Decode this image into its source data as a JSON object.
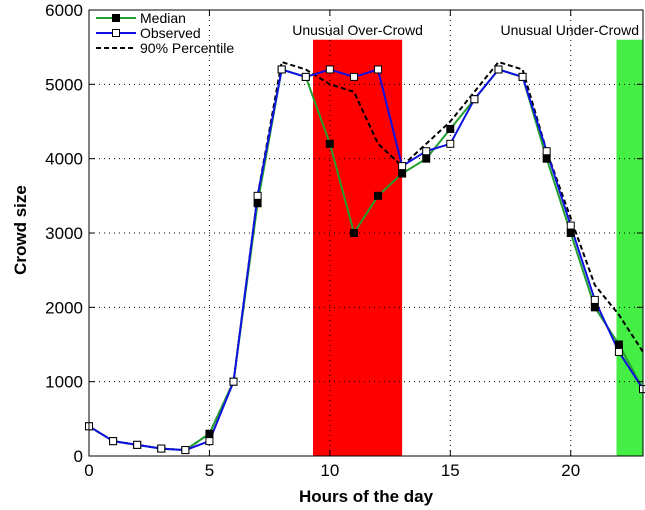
{
  "chart_data": {
    "type": "line",
    "title": "",
    "xlabel": "Hours of the day",
    "ylabel": "Crowd size",
    "xlim": [
      0,
      23
    ],
    "ylim": [
      0,
      6000
    ],
    "xticks": [
      0,
      5,
      10,
      15,
      20
    ],
    "yticks": [
      0,
      1000,
      2000,
      3000,
      4000,
      5000,
      6000
    ],
    "grid": "dotted",
    "legend_position": "top-left",
    "regions": [
      {
        "label": "Unusual Over-Crowd",
        "x_start": 9.3,
        "x_end": 13.0,
        "color": "#ff0000"
      },
      {
        "label": "Unusual Under-Crowd",
        "x_start": 21.9,
        "x_end": 23.0,
        "color": "#44ee44"
      }
    ],
    "x": [
      0,
      1,
      2,
      3,
      4,
      5,
      6,
      7,
      8,
      9,
      10,
      11,
      12,
      13,
      14,
      15,
      16,
      17,
      18,
      19,
      20,
      21,
      22,
      23
    ],
    "series": [
      {
        "name": "Median",
        "color": "#22a030",
        "marker": "filled-square",
        "dash": "solid",
        "values": [
          400,
          200,
          150,
          100,
          80,
          300,
          1000,
          3400,
          5200,
          5100,
          4200,
          3000,
          3500,
          3800,
          4000,
          4400,
          4800,
          5200,
          5100,
          4000,
          3000,
          2000,
          1500,
          900
        ]
      },
      {
        "name": "Observed",
        "color": "#1010e0",
        "marker": "open-square",
        "dash": "solid",
        "values": [
          400,
          200,
          150,
          100,
          80,
          200,
          1000,
          3500,
          5200,
          5100,
          5200,
          5100,
          5200,
          3900,
          4100,
          4200,
          4800,
          5200,
          5100,
          4100,
          3100,
          2100,
          1400,
          900
        ]
      },
      {
        "name": "90% Percentile",
        "color": "#000000",
        "marker": "none",
        "dash": "dashed",
        "values": [
          400,
          200,
          150,
          100,
          80,
          300,
          1000,
          3500,
          5300,
          5200,
          5000,
          4900,
          4200,
          3900,
          4200,
          4500,
          4900,
          5300,
          5200,
          4100,
          3200,
          2300,
          1900,
          1400
        ]
      }
    ]
  }
}
